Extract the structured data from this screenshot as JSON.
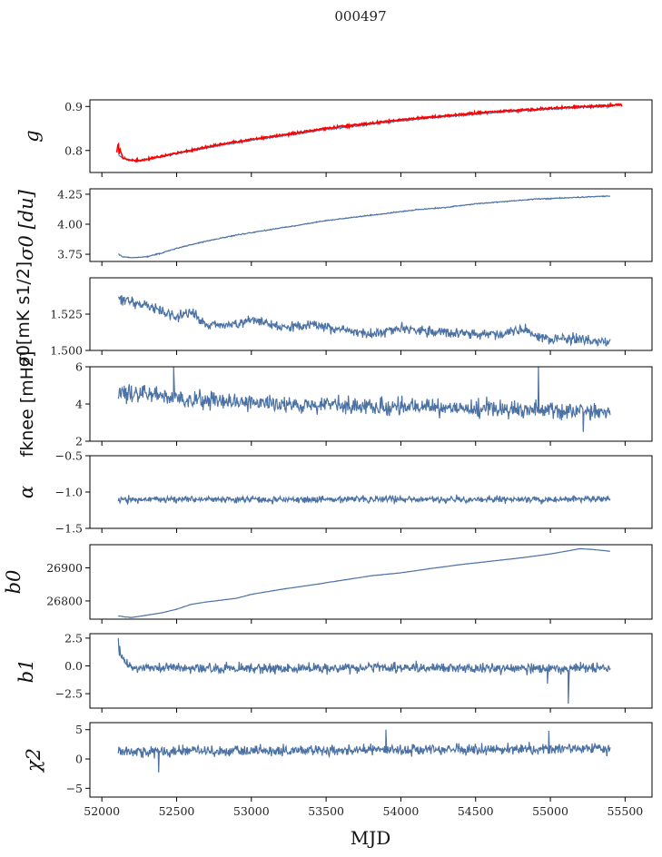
{
  "figure_title": "000497",
  "xlabel": "MJD",
  "colors": {
    "series": "#4c72a4",
    "overlay": "#ff0000",
    "axis": "#000000"
  },
  "chart_data": [
    {
      "type": "line",
      "ylabel": "g",
      "xlim": [
        51920,
        55680
      ],
      "ylim": [
        0.75,
        0.915
      ],
      "yticks": [
        0.8,
        0.9
      ],
      "ytick_labels": [
        "0.8",
        "0.9"
      ],
      "series": [
        {
          "color": "#4c72a4",
          "noise": 0.002,
          "x": [
            52110,
            52140,
            52200,
            52250,
            52300,
            52400,
            52500,
            52700,
            52900,
            53100,
            53300,
            53500,
            53700,
            53900,
            54100,
            54300,
            54500,
            54700,
            54900,
            55100,
            55300,
            55400
          ],
          "y": [
            0.79,
            0.782,
            0.777,
            0.777,
            0.779,
            0.786,
            0.793,
            0.806,
            0.818,
            0.828,
            0.838,
            0.848,
            0.856,
            0.864,
            0.871,
            0.877,
            0.883,
            0.888,
            0.892,
            0.896,
            0.899,
            0.9
          ]
        },
        {
          "color": "#ff0000",
          "noise": 0.0025,
          "x": [
            52100,
            52110,
            52115,
            52120,
            52140,
            52200,
            52250,
            52300,
            52400,
            52500,
            52700,
            52900,
            53100,
            53300,
            53500,
            53700,
            53900,
            54100,
            54300,
            54500,
            54700,
            54900,
            55100,
            55300,
            55480
          ],
          "y": [
            0.795,
            0.82,
            0.79,
            0.805,
            0.783,
            0.777,
            0.777,
            0.78,
            0.787,
            0.794,
            0.808,
            0.82,
            0.83,
            0.84,
            0.85,
            0.858,
            0.866,
            0.873,
            0.879,
            0.885,
            0.89,
            0.894,
            0.898,
            0.901,
            0.904
          ]
        }
      ]
    },
    {
      "type": "line",
      "ylabel": "σ0 [du]",
      "xlim": [
        51920,
        55680
      ],
      "ylim": [
        3.69,
        4.295
      ],
      "yticks": [
        3.75,
        4.0,
        4.25
      ],
      "ytick_labels": [
        "3.75",
        "4.00",
        "4.25"
      ],
      "series": [
        {
          "color": "#4c72a4",
          "noise": 0.004,
          "x": [
            52110,
            52140,
            52200,
            52300,
            52400,
            52500,
            52700,
            52900,
            53100,
            53300,
            53500,
            53700,
            53900,
            54100,
            54300,
            54500,
            54700,
            54900,
            55100,
            55300,
            55400
          ],
          "y": [
            3.75,
            3.73,
            3.72,
            3.73,
            3.76,
            3.8,
            3.86,
            3.91,
            3.95,
            3.99,
            4.03,
            4.06,
            4.09,
            4.12,
            4.14,
            4.17,
            4.19,
            4.21,
            4.22,
            4.23,
            4.235
          ]
        }
      ]
    },
    {
      "type": "line",
      "ylabel": "σ0[mK s1/2]",
      "xlim": [
        51920,
        55680
      ],
      "ylim": [
        1.5,
        1.55
      ],
      "yticks": [
        1.5,
        1.525
      ],
      "ytick_labels": [
        "1.500",
        "1.525"
      ],
      "series": [
        {
          "color": "#4c72a4",
          "noise": 0.0035,
          "x": [
            52110,
            52200,
            52300,
            52400,
            52500,
            52600,
            52700,
            52800,
            53000,
            53200,
            53400,
            53600,
            53800,
            54000,
            54200,
            54400,
            54600,
            54800,
            55000,
            55200,
            55400
          ],
          "y": [
            1.535,
            1.533,
            1.531,
            1.527,
            1.523,
            1.526,
            1.518,
            1.517,
            1.521,
            1.516,
            1.518,
            1.514,
            1.511,
            1.515,
            1.513,
            1.512,
            1.511,
            1.514,
            1.508,
            1.507,
            1.506
          ]
        }
      ]
    },
    {
      "type": "line",
      "ylabel": "fknee [mHz]",
      "xlim": [
        51920,
        55680
      ],
      "ylim": [
        2,
        6
      ],
      "yticks": [
        2,
        4,
        6
      ],
      "ytick_labels": [
        "2",
        "4",
        "6"
      ],
      "series": [
        {
          "color": "#4c72a4",
          "noise": 0.45,
          "spikes": [
            [
              52480,
              6.0
            ],
            [
              54920,
              6.0
            ],
            [
              55220,
              2.5
            ]
          ],
          "x": [
            52110,
            52300,
            52500,
            52700,
            52900,
            53100,
            53300,
            53500,
            53700,
            53900,
            54100,
            54300,
            54500,
            54700,
            54900,
            55100,
            55300,
            55400
          ],
          "y": [
            4.6,
            4.5,
            4.3,
            4.2,
            4.1,
            4.0,
            4.0,
            3.9,
            3.9,
            3.8,
            3.8,
            3.8,
            3.7,
            3.7,
            3.7,
            3.6,
            3.6,
            3.5
          ]
        }
      ]
    },
    {
      "type": "line",
      "ylabel": "α",
      "xlim": [
        51920,
        55680
      ],
      "ylim": [
        -1.5,
        -0.5
      ],
      "yticks": [
        -1.5,
        -1.0,
        -0.5
      ],
      "ytick_labels": [
        "−1.5",
        "−1.0",
        "−0.5"
      ],
      "series": [
        {
          "color": "#4c72a4",
          "noise": 0.045,
          "x": [
            52110,
            55400
          ],
          "y": [
            -1.1,
            -1.1
          ]
        }
      ]
    },
    {
      "type": "line",
      "ylabel": "b0",
      "xlim": [
        51920,
        55680
      ],
      "ylim": [
        26745,
        26970
      ],
      "yticks": [
        26800,
        26900
      ],
      "ytick_labels": [
        "26800",
        "26900"
      ],
      "series": [
        {
          "color": "#4c72a4",
          "noise": 0.4,
          "x": [
            52110,
            52150,
            52200,
            52300,
            52400,
            52500,
            52600,
            52700,
            52900,
            53000,
            53200,
            53400,
            53600,
            53800,
            54000,
            54200,
            54400,
            54600,
            54800,
            55000,
            55100,
            55200,
            55300,
            55400
          ],
          "y": [
            26755,
            26752,
            26750,
            26757,
            26764,
            26775,
            26790,
            26797,
            26808,
            26820,
            26835,
            26848,
            26862,
            26876,
            26885,
            26898,
            26910,
            26920,
            26930,
            26942,
            26950,
            26958,
            26955,
            26950
          ]
        }
      ]
    },
    {
      "type": "line",
      "ylabel": "b1",
      "xlim": [
        51920,
        55680
      ],
      "ylim": [
        -3.8,
        2.9
      ],
      "yticks": [
        -2.5,
        0.0,
        2.5
      ],
      "ytick_labels": [
        "−2.5",
        "0.0",
        "2.5"
      ],
      "series": [
        {
          "color": "#4c72a4",
          "noise": 0.45,
          "spikes": [
            [
              52110,
              2.5
            ],
            [
              52120,
              1.8
            ],
            [
              55120,
              -3.4
            ],
            [
              54980,
              -1.6
            ]
          ],
          "x": [
            52110,
            52200,
            55400
          ],
          "y": [
            1.0,
            -0.2,
            -0.2
          ]
        }
      ]
    },
    {
      "type": "line",
      "ylabel": "χ2",
      "xlim": [
        51920,
        55680
      ],
      "ylim": [
        -6.5,
        6.2
      ],
      "yticks": [
        -5,
        0,
        5
      ],
      "ytick_labels": [
        "−5",
        "0",
        "5"
      ],
      "series": [
        {
          "color": "#4c72a4",
          "noise": 0.9,
          "spikes": [
            [
              52380,
              -2.3
            ],
            [
              53900,
              5.0
            ],
            [
              54990,
              4.8
            ]
          ],
          "x": [
            52110,
            53000,
            54000,
            55400
          ],
          "y": [
            1.2,
            1.5,
            1.5,
            1.8
          ]
        }
      ]
    }
  ],
  "xaxis": {
    "ticks": [
      52000,
      52500,
      53000,
      53500,
      54000,
      54500,
      55000,
      55500
    ],
    "tick_labels": [
      "52000",
      "52500",
      "53000",
      "53500",
      "54000",
      "54500",
      "55000",
      "55500"
    ]
  }
}
